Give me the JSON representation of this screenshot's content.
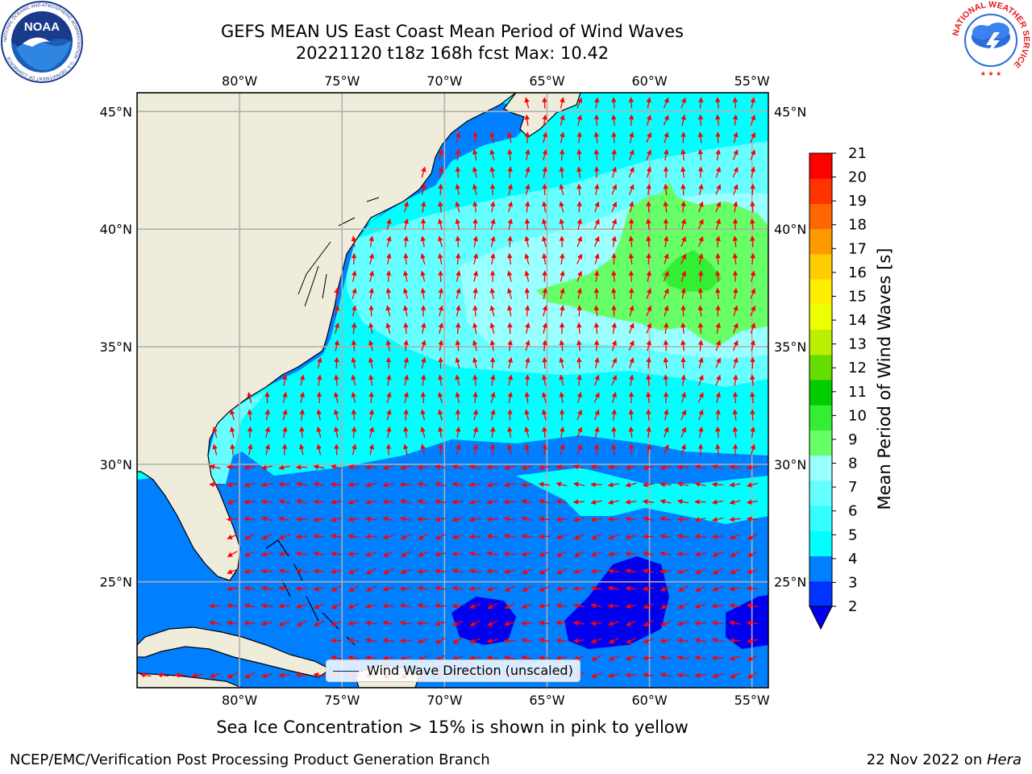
{
  "title": {
    "line1": "GEFS MEAN US East Coast Mean Period of Wind Waves",
    "line2": "20221120 t18z 168h fcst   Max: 10.42"
  },
  "map": {
    "lon_ticks": [
      "80°W",
      "75°W",
      "70°W",
      "65°W",
      "60°W",
      "55°W"
    ],
    "lat_ticks": [
      "45°N",
      "40°N",
      "35°N",
      "30°N",
      "25°N"
    ],
    "lon_values": [
      -80,
      -75,
      -70,
      -65,
      -60,
      -55
    ],
    "lat_values": [
      45,
      40,
      35,
      30,
      25
    ],
    "extent": {
      "lon_min": -85,
      "lon_max": -54.2,
      "lat_min": 20.5,
      "lat_max": 45.8
    },
    "colors": {
      "land": "#efecdb",
      "grid": "#b0b0b0",
      "arrows": "#ff0000",
      "coastline": "#000000"
    }
  },
  "legend": {
    "label": "Wind Wave Direction (unscaled)"
  },
  "colorbar": {
    "label": "Mean Period of Wind Waves [s]",
    "ticks": [
      "21",
      "20",
      "19",
      "18",
      "17",
      "16",
      "15",
      "14",
      "13",
      "12",
      "11",
      "10",
      "9",
      "8",
      "7",
      "6",
      "5",
      "4",
      "3",
      "2"
    ],
    "levels": [
      2,
      4,
      6,
      7,
      8,
      9,
      10,
      11,
      12,
      13,
      14,
      15,
      16,
      17,
      18,
      19,
      20,
      21
    ],
    "colors": [
      "#0033ff",
      "#007fff",
      "#00ffff",
      "#33ffff",
      "#66ffff",
      "#99ffff",
      "#66ff66",
      "#33ee33",
      "#00cc00",
      "#66dd00",
      "#bbee00",
      "#eeff00",
      "#ffee00",
      "#ffcc00",
      "#ff9900",
      "#ff6600",
      "#ff3300",
      "#ff0000"
    ],
    "under_color": "#0000ee"
  },
  "caption": "Sea Ice Concentration > 15% is shown in pink to yellow",
  "footer": {
    "left": "NCEP/EMC/Verification Post Processing Product Generation Branch",
    "right_prefix": "22 Nov 2022 on ",
    "right_host": "Hera"
  },
  "logos": {
    "noaa_text": "NOAA",
    "noaa_ring": "NATIONAL OCEANIC AND ATMOSPHERIC ADMINISTRATION · U.S. DEPARTMENT OF COMMERCE",
    "nws_ring": "NATIONAL WEATHER SERVICE"
  }
}
